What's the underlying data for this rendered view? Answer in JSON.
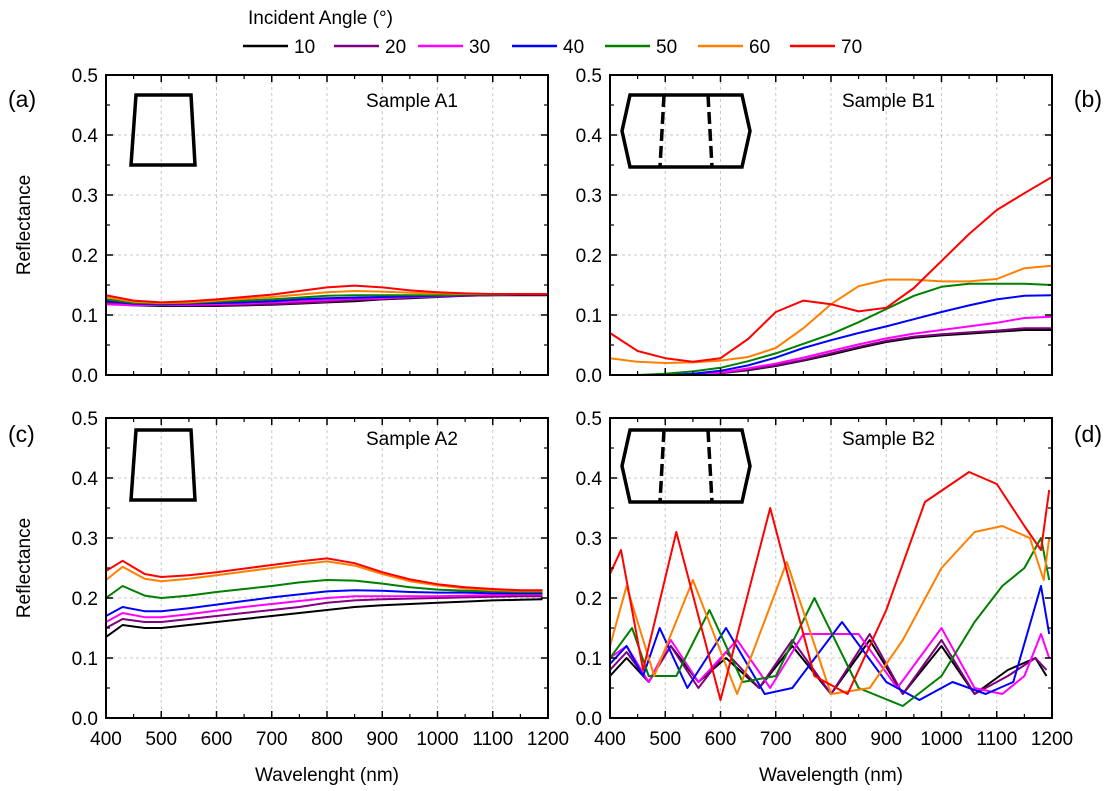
{
  "legend": {
    "title": "Incident Angle (°)",
    "entries": [
      {
        "label": "10",
        "color": "#000000"
      },
      {
        "label": "20",
        "color": "#800080"
      },
      {
        "label": "30",
        "color": "#ff00ff"
      },
      {
        "label": "40",
        "color": "#0000ff"
      },
      {
        "label": "50",
        "color": "#008000"
      },
      {
        "label": "60",
        "color": "#ff8000"
      },
      {
        "label": "70",
        "color": "#ff0000"
      }
    ]
  },
  "chart_data": [
    {
      "type": "line",
      "panel": "(a)",
      "annotation": "Sample A1",
      "inset": "trapezoid",
      "ylabel": "Reflectance",
      "xlabel": "",
      "xlim": [
        400,
        1200
      ],
      "ylim": [
        0,
        0.5
      ],
      "xticks": [
        "400",
        "500",
        "600",
        "700",
        "800",
        "900",
        "1000",
        "1100",
        "1200"
      ],
      "yticks": [
        "0.0",
        "0.1",
        "0.2",
        "0.3",
        "0.4",
        "0.5"
      ],
      "grid": true,
      "x": [
        400,
        450,
        500,
        550,
        600,
        650,
        700,
        750,
        800,
        850,
        900,
        950,
        1000,
        1050,
        1100,
        1150,
        1200
      ],
      "series": [
        {
          "name": "10",
          "values": [
            0.12,
            0.116,
            0.115,
            0.115,
            0.115,
            0.116,
            0.117,
            0.119,
            0.121,
            0.123,
            0.126,
            0.128,
            0.13,
            0.132,
            0.133,
            0.133,
            0.133
          ]
        },
        {
          "name": "20",
          "values": [
            0.121,
            0.117,
            0.116,
            0.116,
            0.116,
            0.117,
            0.118,
            0.12,
            0.122,
            0.125,
            0.127,
            0.129,
            0.131,
            0.132,
            0.133,
            0.134,
            0.134
          ]
        },
        {
          "name": "30",
          "values": [
            0.118,
            0.116,
            0.117,
            0.117,
            0.118,
            0.119,
            0.121,
            0.123,
            0.125,
            0.127,
            0.128,
            0.13,
            0.131,
            0.133,
            0.134,
            0.135,
            0.135
          ]
        },
        {
          "name": "40",
          "values": [
            0.124,
            0.119,
            0.118,
            0.119,
            0.12,
            0.121,
            0.123,
            0.126,
            0.128,
            0.129,
            0.13,
            0.131,
            0.132,
            0.133,
            0.134,
            0.135,
            0.135
          ]
        },
        {
          "name": "50",
          "values": [
            0.126,
            0.12,
            0.119,
            0.12,
            0.122,
            0.124,
            0.126,
            0.129,
            0.132,
            0.133,
            0.133,
            0.133,
            0.133,
            0.134,
            0.134,
            0.135,
            0.135
          ]
        },
        {
          "name": "60",
          "values": [
            0.13,
            0.122,
            0.12,
            0.121,
            0.124,
            0.127,
            0.13,
            0.134,
            0.138,
            0.14,
            0.139,
            0.137,
            0.136,
            0.135,
            0.135,
            0.135,
            0.135
          ]
        },
        {
          "name": "70",
          "values": [
            0.133,
            0.124,
            0.121,
            0.123,
            0.126,
            0.13,
            0.134,
            0.14,
            0.146,
            0.149,
            0.146,
            0.141,
            0.138,
            0.136,
            0.135,
            0.135,
            0.135
          ]
        }
      ]
    },
    {
      "type": "line",
      "panel": "(b)",
      "annotation": "Sample B1",
      "inset": "trapezoid-two-dashed",
      "ylabel": "",
      "xlabel": "",
      "xlim": [
        400,
        1200
      ],
      "ylim": [
        0,
        0.5
      ],
      "xticks": [
        "400",
        "500",
        "600",
        "700",
        "800",
        "900",
        "1000",
        "1100",
        "1200"
      ],
      "yticks": [
        "0.0",
        "0.1",
        "0.2",
        "0.3",
        "0.4",
        "0.5"
      ],
      "grid": true,
      "x": [
        400,
        450,
        500,
        550,
        600,
        650,
        700,
        750,
        800,
        850,
        900,
        950,
        1000,
        1050,
        1100,
        1150,
        1200
      ],
      "series": [
        {
          "name": "10",
          "values": [
            0.0,
            0.0,
            0.0,
            0.0,
            0.003,
            0.008,
            0.015,
            0.024,
            0.034,
            0.045,
            0.055,
            0.062,
            0.066,
            0.069,
            0.072,
            0.075,
            0.075
          ]
        },
        {
          "name": "20",
          "values": [
            0.0,
            0.0,
            0.0,
            0.0,
            0.003,
            0.009,
            0.016,
            0.025,
            0.036,
            0.047,
            0.057,
            0.064,
            0.068,
            0.071,
            0.074,
            0.078,
            0.078
          ]
        },
        {
          "name": "30",
          "values": [
            0.0,
            0.0,
            0.0,
            0.0,
            0.004,
            0.011,
            0.019,
            0.029,
            0.04,
            0.051,
            0.061,
            0.069,
            0.075,
            0.081,
            0.087,
            0.095,
            0.097
          ]
        },
        {
          "name": "40",
          "values": [
            0.0,
            0.0,
            0.0,
            0.002,
            0.007,
            0.016,
            0.029,
            0.045,
            0.058,
            0.07,
            0.081,
            0.093,
            0.105,
            0.116,
            0.126,
            0.132,
            0.133
          ]
        },
        {
          "name": "50",
          "values": [
            0.0,
            0.0,
            0.002,
            0.006,
            0.012,
            0.023,
            0.036,
            0.052,
            0.068,
            0.088,
            0.11,
            0.132,
            0.147,
            0.152,
            0.152,
            0.152,
            0.15
          ]
        },
        {
          "name": "60",
          "values": [
            0.028,
            0.022,
            0.02,
            0.021,
            0.024,
            0.03,
            0.045,
            0.078,
            0.118,
            0.148,
            0.159,
            0.159,
            0.156,
            0.156,
            0.16,
            0.178,
            0.182
          ]
        },
        {
          "name": "70",
          "values": [
            0.07,
            0.04,
            0.028,
            0.022,
            0.028,
            0.06,
            0.105,
            0.124,
            0.118,
            0.106,
            0.112,
            0.145,
            0.19,
            0.235,
            0.275,
            0.303,
            0.33
          ]
        }
      ]
    },
    {
      "type": "line",
      "panel": "(c)",
      "annotation": "Sample A2",
      "inset": "trapezoid",
      "ylabel": "Reflectance",
      "xlabel": "Wavelenght (nm)",
      "xlim": [
        400,
        1200
      ],
      "ylim": [
        0,
        0.5
      ],
      "xticks": [
        "400",
        "500",
        "600",
        "700",
        "800",
        "900",
        "1000",
        "1100",
        "1200"
      ],
      "yticks": [
        "0.0",
        "0.1",
        "0.2",
        "0.3",
        "0.4",
        "0.5"
      ],
      "grid": true,
      "x": [
        400,
        430,
        470,
        500,
        550,
        600,
        650,
        700,
        750,
        800,
        850,
        900,
        950,
        1000,
        1050,
        1100,
        1150,
        1190
      ],
      "series": [
        {
          "name": "10",
          "values": [
            0.135,
            0.155,
            0.15,
            0.15,
            0.155,
            0.16,
            0.165,
            0.17,
            0.175,
            0.18,
            0.185,
            0.188,
            0.19,
            0.192,
            0.194,
            0.196,
            0.197,
            0.198
          ]
        },
        {
          "name": "20",
          "values": [
            0.15,
            0.165,
            0.16,
            0.16,
            0.165,
            0.17,
            0.175,
            0.18,
            0.185,
            0.192,
            0.196,
            0.198,
            0.199,
            0.2,
            0.201,
            0.202,
            0.203,
            0.203
          ]
        },
        {
          "name": "30",
          "values": [
            0.16,
            0.175,
            0.168,
            0.168,
            0.173,
            0.179,
            0.185,
            0.19,
            0.195,
            0.2,
            0.203,
            0.203,
            0.203,
            0.203,
            0.204,
            0.205,
            0.206,
            0.206
          ]
        },
        {
          "name": "40",
          "values": [
            0.17,
            0.185,
            0.178,
            0.178,
            0.183,
            0.189,
            0.195,
            0.201,
            0.206,
            0.211,
            0.213,
            0.212,
            0.21,
            0.209,
            0.209,
            0.208,
            0.208,
            0.208
          ]
        },
        {
          "name": "50",
          "values": [
            0.2,
            0.22,
            0.204,
            0.2,
            0.204,
            0.21,
            0.215,
            0.22,
            0.226,
            0.23,
            0.229,
            0.224,
            0.218,
            0.214,
            0.212,
            0.211,
            0.21,
            0.21
          ]
        },
        {
          "name": "60",
          "values": [
            0.23,
            0.252,
            0.232,
            0.228,
            0.232,
            0.238,
            0.244,
            0.25,
            0.256,
            0.261,
            0.254,
            0.24,
            0.228,
            0.221,
            0.216,
            0.213,
            0.212,
            0.212
          ]
        },
        {
          "name": "70",
          "values": [
            0.245,
            0.262,
            0.24,
            0.235,
            0.238,
            0.243,
            0.249,
            0.255,
            0.261,
            0.266,
            0.258,
            0.243,
            0.231,
            0.223,
            0.218,
            0.215,
            0.213,
            0.213
          ]
        }
      ]
    },
    {
      "type": "line",
      "panel": "(d)",
      "annotation": "Sample B2",
      "inset": "trapezoid-two-dashed",
      "ylabel": "",
      "xlabel": "Wavelength (nm)",
      "xlim": [
        400,
        1200
      ],
      "ylim": [
        0,
        0.5
      ],
      "xticks": [
        "400",
        "500",
        "600",
        "700",
        "800",
        "900",
        "1000",
        "1100",
        "1200"
      ],
      "yticks": [
        "0.0",
        "0.1",
        "0.2",
        "0.3",
        "0.4",
        "0.5"
      ],
      "grid": true,
      "series": [
        {
          "name": "10",
          "x": [
            400,
            430,
            470,
            510,
            560,
            610,
            670,
            730,
            800,
            870,
            930,
            1000,
            1060,
            1120,
            1170,
            1190
          ],
          "values": [
            0.07,
            0.1,
            0.06,
            0.12,
            0.06,
            0.1,
            0.05,
            0.12,
            0.04,
            0.13,
            0.04,
            0.12,
            0.04,
            0.08,
            0.1,
            0.07
          ]
        },
        {
          "name": "20",
          "x": [
            400,
            430,
            470,
            510,
            560,
            610,
            670,
            730,
            800,
            870,
            930,
            1000,
            1060,
            1120,
            1170,
            1190
          ],
          "values": [
            0.08,
            0.11,
            0.06,
            0.12,
            0.05,
            0.11,
            0.05,
            0.13,
            0.04,
            0.14,
            0.04,
            0.13,
            0.04,
            0.07,
            0.1,
            0.08
          ]
        },
        {
          "name": "30",
          "x": [
            400,
            430,
            470,
            510,
            560,
            630,
            690,
            750,
            850,
            920,
            1000,
            1060,
            1110,
            1150,
            1180,
            1195
          ],
          "values": [
            0.1,
            0.12,
            0.06,
            0.13,
            0.06,
            0.13,
            0.05,
            0.14,
            0.14,
            0.05,
            0.15,
            0.05,
            0.04,
            0.07,
            0.14,
            0.1
          ]
        },
        {
          "name": "40",
          "x": [
            400,
            430,
            460,
            490,
            540,
            610,
            680,
            730,
            820,
            900,
            960,
            1020,
            1080,
            1130,
            1180,
            1195
          ],
          "values": [
            0.09,
            0.12,
            0.07,
            0.15,
            0.05,
            0.15,
            0.04,
            0.05,
            0.16,
            0.06,
            0.03,
            0.06,
            0.04,
            0.06,
            0.22,
            0.14
          ]
        },
        {
          "name": "50",
          "x": [
            400,
            440,
            470,
            520,
            580,
            640,
            700,
            770,
            850,
            930,
            1000,
            1060,
            1110,
            1150,
            1180,
            1195
          ],
          "values": [
            0.1,
            0.15,
            0.07,
            0.07,
            0.18,
            0.06,
            0.07,
            0.2,
            0.05,
            0.02,
            0.07,
            0.16,
            0.22,
            0.25,
            0.3,
            0.23
          ]
        },
        {
          "name": "60",
          "x": [
            400,
            430,
            480,
            550,
            630,
            720,
            800,
            870,
            930,
            1000,
            1060,
            1110,
            1160,
            1185,
            1195
          ],
          "values": [
            0.12,
            0.22,
            0.07,
            0.23,
            0.04,
            0.26,
            0.04,
            0.05,
            0.13,
            0.25,
            0.31,
            0.32,
            0.3,
            0.23,
            0.3
          ]
        },
        {
          "name": "70",
          "x": [
            400,
            420,
            460,
            520,
            600,
            690,
            770,
            830,
            900,
            970,
            1050,
            1100,
            1150,
            1180,
            1195
          ],
          "values": [
            0.24,
            0.28,
            0.08,
            0.31,
            0.03,
            0.35,
            0.07,
            0.04,
            0.18,
            0.36,
            0.41,
            0.39,
            0.32,
            0.28,
            0.38
          ]
        }
      ]
    }
  ]
}
